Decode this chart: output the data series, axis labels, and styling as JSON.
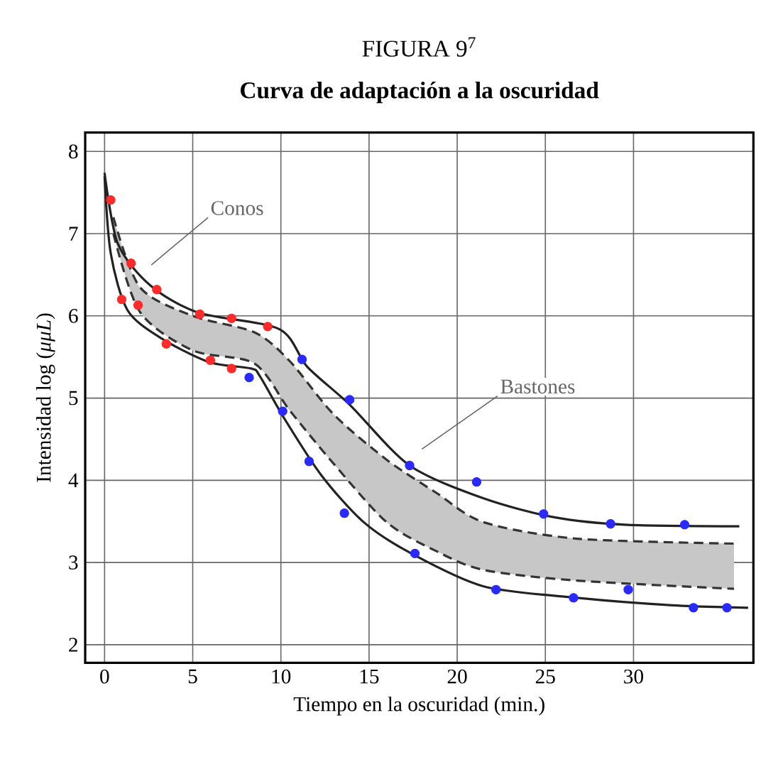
{
  "chart_data": {
    "type": "line",
    "title": "FIGURA 9$^{7}$",
    "subtitle": "Curva de adaptación a la oscuridad",
    "xlabel": "Tiempo en la oscuridad (min.)",
    "ylabel": "Intensidad log (*μμL*)",
    "xlim": [
      -1.1,
      36.8
    ],
    "ylim": [
      1.78,
      8.23
    ],
    "xticks": [
      0,
      5,
      10,
      15,
      20,
      25,
      30
    ],
    "yticks": [
      2,
      3,
      4,
      5,
      6,
      7,
      8
    ],
    "grid": true,
    "series": [
      {
        "color": "#333333",
        "line_style": "dashed",
        "x": [
          0.5,
          2,
          5,
          8.5,
          10.5,
          13,
          16,
          18.8,
          21.5,
          26.8,
          35.7
        ],
        "values": [
          7.2,
          6.35,
          6.0,
          5.8,
          5.45,
          4.8,
          4.25,
          3.85,
          3.49,
          3.29,
          3.23
        ],
        "upper": [
          7.2,
          6.35,
          6.0,
          5.8,
          5.45,
          4.8,
          4.25,
          3.85,
          3.49,
          3.29,
          3.23
        ],
        "lower": [
          7.0,
          6.05,
          5.58,
          5.42,
          4.85,
          4.2,
          3.49,
          3.14,
          2.91,
          2.78,
          2.68
        ]
      },
      {
        "color": "#333333",
        "line_style": "dashed",
        "x": [
          0.5,
          2,
          5,
          8.5,
          10.5,
          13,
          16,
          18.8,
          21.5,
          26.8,
          35.7
        ],
        "values": [
          7.0,
          6.05,
          5.58,
          5.42,
          4.85,
          4.2,
          3.49,
          3.14,
          2.91,
          2.78,
          2.68
        ]
      },
      {
        "color": "#222222",
        "x": [
          0,
          0.75,
          2.6,
          5.3,
          9.9,
          11.5,
          13.9,
          17.3,
          21.5,
          25.5,
          29.5,
          36
        ],
        "values": [
          7.74,
          6.88,
          6.37,
          6.04,
          5.84,
          5.38,
          4.92,
          4.18,
          3.78,
          3.55,
          3.46,
          3.44
        ]
      },
      {
        "color": "#222222",
        "x": [
          0,
          0.35,
          1.3,
          3.2,
          5.9,
          8.3,
          8.8,
          10.2,
          12.3,
          14.7,
          17.4,
          21.5,
          26.8,
          32.2,
          36.5
        ],
        "values": [
          7.7,
          6.76,
          6.07,
          5.73,
          5.44,
          5.36,
          5.27,
          4.75,
          4.06,
          3.49,
          3.11,
          2.71,
          2.57,
          2.48,
          2.45
        ]
      },
      {
        "type": "scatter",
        "marker": "circle",
        "color": "#ff2a2a",
        "x": [
          0.35,
          1.5,
          0.97,
          1.9,
          2.96,
          3.5,
          5.4,
          6.0,
          7.2,
          7.2,
          9.25
        ],
        "values": [
          7.41,
          6.64,
          6.2,
          6.13,
          6.32,
          5.66,
          6.02,
          5.46,
          5.97,
          5.36,
          5.87
        ]
      },
      {
        "type": "scatter",
        "marker": "circle",
        "color": "#2a2aff",
        "x": [
          8.2,
          11.2,
          10.1,
          13.9,
          11.6,
          13.6,
          17.3,
          21.1,
          17.6,
          24.9,
          28.7,
          32.9,
          22.2,
          26.6,
          29.7,
          33.4,
          35.3
        ],
        "values": [
          5.25,
          5.47,
          4.84,
          4.98,
          4.23,
          3.6,
          4.18,
          3.98,
          3.11,
          3.59,
          3.47,
          3.46,
          2.67,
          2.57,
          2.67,
          2.45,
          2.45
        ]
      }
    ],
    "annotations": [
      "Conos",
      "Bastones"
    ]
  }
}
